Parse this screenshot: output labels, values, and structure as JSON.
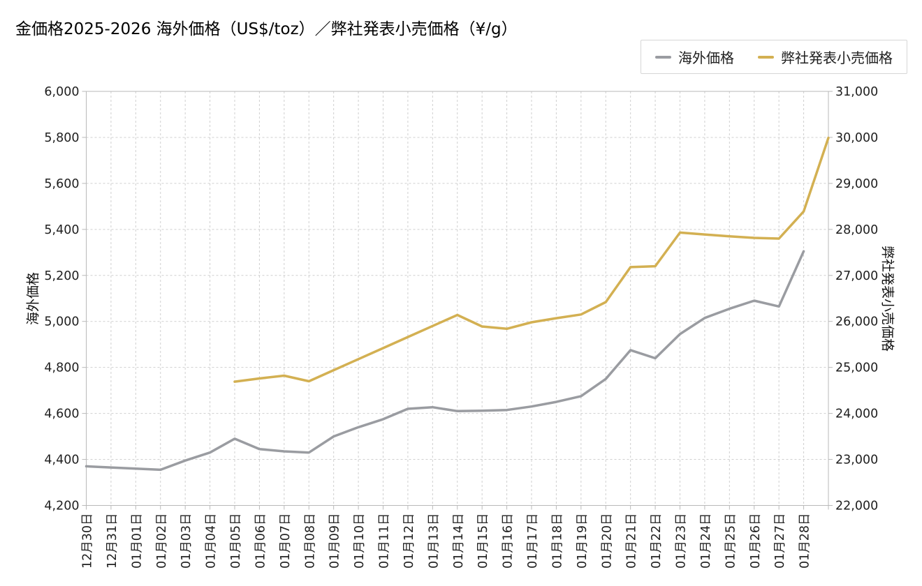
{
  "title": "金価格2025-2026 海外価格（US$/toz）／弊社発表小売価格（¥/g）",
  "legend": {
    "overseas": "海外価格",
    "retail": "弊社発表小売価格"
  },
  "colors": {
    "overseas": "#9a9ca1",
    "retail": "#d3b052",
    "grid": "#cfcfcf",
    "frame": "#b9b9b9",
    "text": "#202020"
  },
  "chart_data": {
    "type": "line",
    "title": "金価格2025-2026 海外価格（US$/toz）／弊社発表小売価格（¥/g）",
    "legend_position": "top-right",
    "grid": true,
    "categories": [
      "12月30日",
      "12月31日",
      "01月01日",
      "01月02日",
      "01月03日",
      "01月04日",
      "01月05日",
      "01月06日",
      "01月07日",
      "01月08日",
      "01月09日",
      "01月10日",
      "01月11日",
      "01月12日",
      "01月13日",
      "01月14日",
      "01月15日",
      "01月16日",
      "01月17日",
      "01月18日",
      "01月19日",
      "01月20日",
      "01月21日",
      "01月22日",
      "01月23日",
      "01月24日",
      "01月25日",
      "01月26日",
      "01月27日",
      "01月28日",
      ""
    ],
    "left_axis": {
      "label": "海外価格",
      "min": 4200,
      "max": 6000,
      "step": 200,
      "ticks": [
        "4,200",
        "4,400",
        "4,600",
        "4,800",
        "5,000",
        "5,200",
        "5,400",
        "5,600",
        "5,800",
        "6,000"
      ]
    },
    "right_axis": {
      "label": "弊社発表小売価格",
      "min": 22000,
      "max": 31000,
      "step": 1000,
      "ticks": [
        "22,000",
        "23,000",
        "24,000",
        "25,000",
        "26,000",
        "27,000",
        "28,000",
        "29,000",
        "30,000",
        "31,000"
      ]
    },
    "series": [
      {
        "name": "海外価格",
        "axis": "left",
        "start_index": 0,
        "values": [
          4370,
          4365,
          4360,
          4355,
          4395,
          4430,
          4490,
          4445,
          4435,
          4430,
          4500,
          4540,
          4575,
          4620,
          4627,
          4610,
          4612,
          4615,
          4630,
          4650,
          4675,
          4750,
          4875,
          4840,
          4945,
          5015,
          5055,
          5090,
          5065,
          5305
        ]
      },
      {
        "name": "弊社発表小売価格",
        "axis": "right",
        "start_index": 6,
        "values": [
          24690,
          24760,
          24820,
          24700,
          24940,
          25180,
          25420,
          25660,
          25900,
          26140,
          25890,
          25840,
          25980,
          26070,
          26150,
          26420,
          27180,
          27200,
          27930,
          27890,
          27850,
          27815,
          27800,
          28390,
          29990
        ]
      }
    ]
  }
}
